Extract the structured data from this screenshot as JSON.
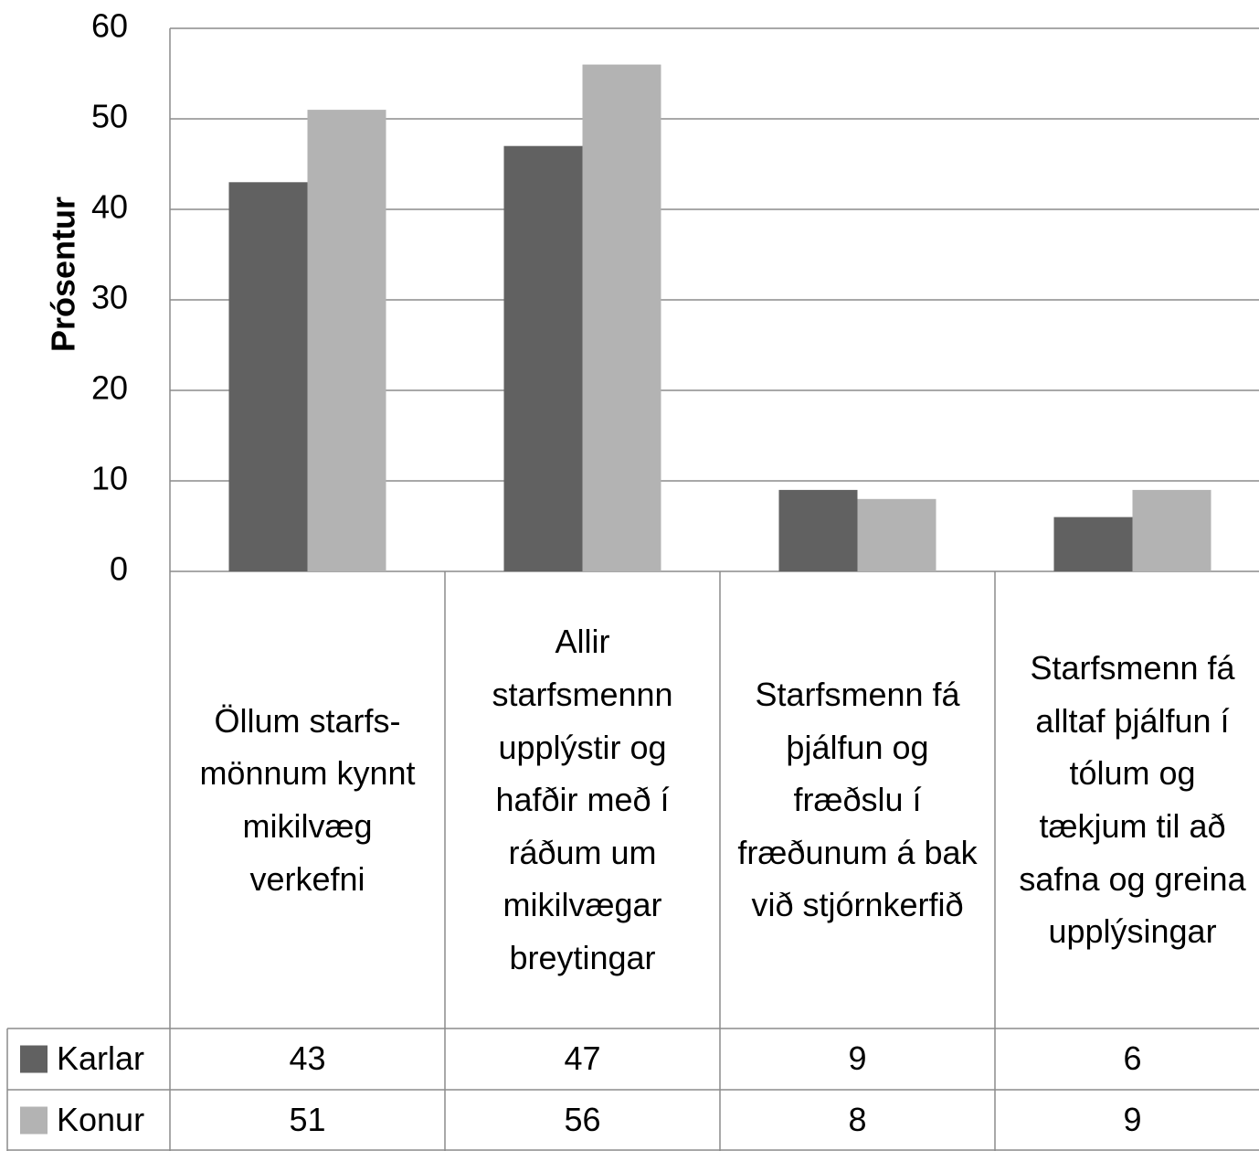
{
  "chart_data": {
    "type": "bar",
    "y_label": "Prósentur",
    "categories": [
      "Öllum starfs-mönnum kynnt mikilvæg verkefni",
      "Allir starfsmennn upplýstir og hafðir með í ráðum um mikilvægar breytingar",
      "Starfsmenn fá þjálfun og fræðslu í fræðunum á bak við stjórnkerfið",
      "Starfsmenn fá alltaf þjálfun í tólum og tækjum til að safna og greina upplýsingar"
    ],
    "series": [
      {
        "name": "Karlar",
        "color": "#616161",
        "values": [
          43,
          47,
          9,
          6
        ]
      },
      {
        "name": "Konur",
        "color": "#b3b3b3",
        "values": [
          51,
          56,
          8,
          9
        ]
      }
    ],
    "ylim": [
      0,
      60
    ],
    "yticks": [
      0,
      10,
      20,
      30,
      40,
      50,
      60
    ],
    "grid": true,
    "data_table": true
  }
}
